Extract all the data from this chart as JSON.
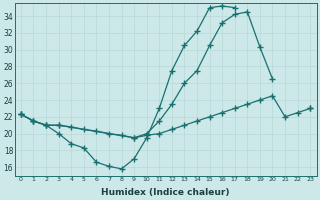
{
  "xlabel": "Humidex (Indice chaleur)",
  "ylabel": "",
  "background_color": "#cce8e8",
  "grid_color": "#b8d8d8",
  "line_color": "#1a7070",
  "xlim": [
    -0.5,
    23.5
  ],
  "ylim": [
    15.0,
    35.5
  ],
  "xticks": [
    0,
    1,
    2,
    3,
    4,
    5,
    6,
    7,
    8,
    9,
    10,
    11,
    12,
    13,
    14,
    15,
    16,
    17,
    18,
    19,
    20,
    21,
    22,
    23
  ],
  "yticks": [
    16,
    18,
    20,
    22,
    24,
    26,
    28,
    30,
    32,
    34
  ],
  "series": [
    {
      "x": [
        0,
        1,
        2,
        3,
        4,
        5,
        6,
        7,
        8,
        9,
        10,
        11,
        12,
        13,
        14,
        15,
        16,
        17
      ],
      "y": [
        22.3,
        21.5,
        21.0,
        20.0,
        18.8,
        18.3,
        16.6,
        16.1,
        15.8,
        17.0,
        19.5,
        23.0,
        27.5,
        30.5,
        32.2,
        35.0,
        35.2,
        35.0
      ]
    },
    {
      "x": [
        0,
        1,
        2,
        3,
        4,
        5,
        6,
        7,
        8,
        9,
        10,
        11,
        12,
        13,
        14,
        15,
        16,
        17,
        18,
        19,
        20,
        21,
        22,
        23
      ],
      "y": [
        22.3,
        21.5,
        21.0,
        21.0,
        20.8,
        20.5,
        20.3,
        20.0,
        19.8,
        19.5,
        19.8,
        20.0,
        20.5,
        21.0,
        21.5,
        22.0,
        22.5,
        23.0,
        23.5,
        24.0,
        24.5,
        22.0,
        22.5,
        23.0
      ]
    },
    {
      "x": [
        0,
        1,
        2,
        3,
        9,
        10,
        11,
        12,
        13,
        14,
        15,
        16,
        17,
        18,
        19,
        20,
        21,
        22,
        23
      ],
      "y": [
        22.3,
        21.5,
        21.0,
        21.0,
        19.5,
        20.0,
        21.5,
        23.5,
        26.0,
        27.5,
        30.5,
        33.2,
        34.2,
        34.5,
        30.3,
        26.5,
        null,
        null,
        23.0
      ]
    }
  ]
}
